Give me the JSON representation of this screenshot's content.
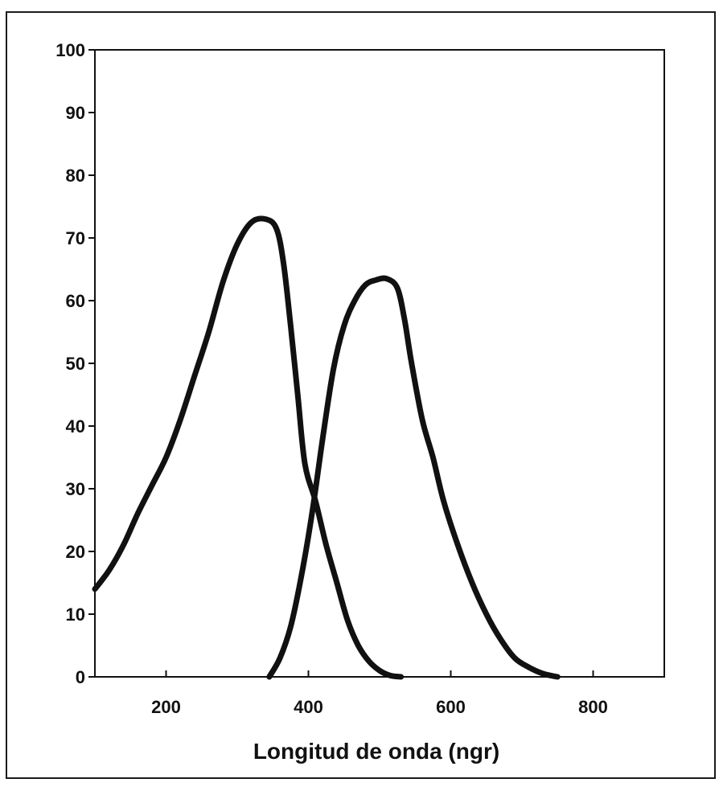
{
  "chart_data": {
    "type": "line",
    "title": "",
    "xlabel": "Longitud de onda (ngr)",
    "ylabel": "",
    "xlim": [
      100,
      900
    ],
    "ylim": [
      0,
      100
    ],
    "x_ticks": [
      200,
      400,
      600,
      800
    ],
    "x_tick_labels": [
      "200",
      "400",
      "600",
      "800"
    ],
    "y_ticks": [
      0,
      10,
      20,
      30,
      40,
      50,
      60,
      70,
      80,
      90,
      100
    ],
    "y_tick_labels": [
      "0",
      "10",
      "20",
      "30",
      "40",
      "50",
      "60",
      "70",
      "80",
      "90",
      "100"
    ],
    "grid": false,
    "line_color": "#111111",
    "series": [
      {
        "x": [
          100,
          120,
          140,
          160,
          180,
          200,
          220,
          240,
          260,
          280,
          300,
          320,
          340,
          355,
          365,
          375,
          385,
          395,
          410,
          425,
          440,
          455,
          470,
          485,
          500,
          515,
          530
        ],
        "y": [
          14,
          17,
          21,
          26,
          30.5,
          35,
          41,
          48,
          55,
          63,
          69,
          72.5,
          73,
          71.5,
          66,
          56,
          45,
          34,
          28,
          21,
          15,
          9,
          5,
          2.5,
          1,
          0.2,
          0
        ]
      },
      {
        "x": [
          345,
          360,
          375,
          390,
          405,
          420,
          435,
          450,
          465,
          480,
          495,
          510,
          525,
          535,
          545,
          560,
          575,
          590,
          610,
          630,
          650,
          670,
          690,
          710,
          730,
          750
        ],
        "y": [
          0,
          3,
          8,
          16,
          26,
          38,
          49,
          56,
          60,
          62.5,
          63.3,
          63.5,
          62,
          57,
          50,
          41,
          35,
          28,
          21,
          15,
          10,
          6,
          3,
          1.5,
          0.5,
          0
        ]
      }
    ]
  }
}
